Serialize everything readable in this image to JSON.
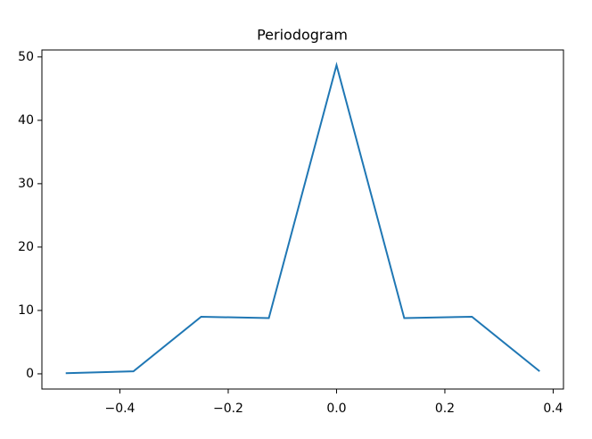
{
  "chart_data": {
    "type": "line",
    "title": "Periodogram",
    "x": [
      -0.5,
      -0.375,
      -0.25,
      -0.125,
      0,
      0.125,
      0.25,
      0.375
    ],
    "series": [
      {
        "color": "#1f77b4",
        "values": [
          0.1,
          0.4,
          9.0,
          8.8,
          48.7,
          8.8,
          9.0,
          0.4
        ]
      }
    ],
    "xlim": [
      -0.544,
      0.419
    ],
    "xticks": [
      {
        "value": -0.4,
        "label": "−0.4"
      },
      {
        "value": -0.2,
        "label": "−0.2"
      },
      {
        "value": 0,
        "label": "0.0"
      },
      0.2,
      0.4
    ],
    "ylim": [
      -2.4,
      51.1
    ],
    "yticks": [
      0,
      10,
      20,
      30,
      40,
      50
    ]
  }
}
